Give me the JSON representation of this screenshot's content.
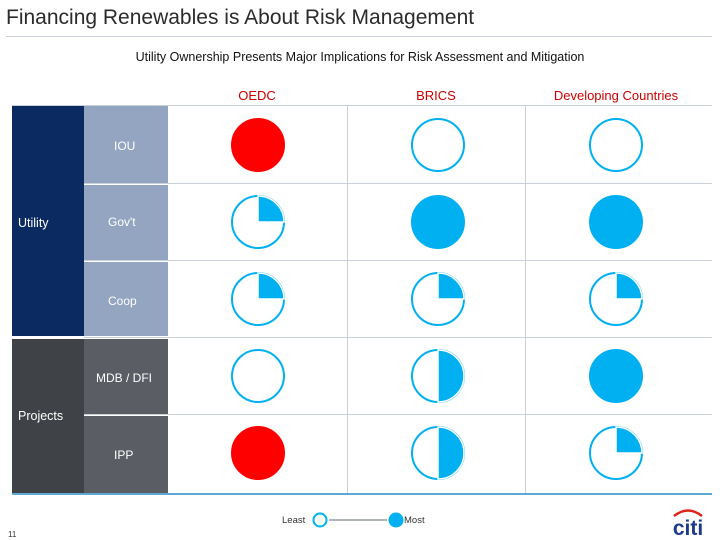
{
  "title": "Financing Renewables is About Risk Management",
  "subtitle": "Utility Ownership Presents Major Implications for Risk Assessment and Mitigation",
  "columns": [
    "OEDC",
    "BRICS",
    "Developing Countries"
  ],
  "groups": [
    {
      "label": "Utility",
      "rows": [
        "IOU",
        "Gov't",
        "Coop"
      ]
    },
    {
      "label": "Projects",
      "rows": [
        "MDB / DFI",
        "IPP"
      ]
    }
  ],
  "matrix": [
    {
      "row": "IOU",
      "cells": [
        {
          "fill": 1.0,
          "color": "red"
        },
        {
          "fill": 0.0,
          "color": "blue"
        },
        {
          "fill": 0.0,
          "color": "blue"
        }
      ]
    },
    {
      "row": "Gov't",
      "cells": [
        {
          "fill": 0.25,
          "color": "blue"
        },
        {
          "fill": 1.0,
          "color": "blue"
        },
        {
          "fill": 1.0,
          "color": "blue"
        }
      ]
    },
    {
      "row": "Coop",
      "cells": [
        {
          "fill": 0.25,
          "color": "blue"
        },
        {
          "fill": 0.25,
          "color": "blue"
        },
        {
          "fill": 0.25,
          "color": "blue"
        }
      ]
    },
    {
      "row": "MDB / DFI",
      "cells": [
        {
          "fill": 0.0,
          "color": "blue"
        },
        {
          "fill": 0.5,
          "color": "blue"
        },
        {
          "fill": 1.0,
          "color": "blue"
        }
      ]
    },
    {
      "row": "IPP",
      "cells": [
        {
          "fill": 1.0,
          "color": "red"
        },
        {
          "fill": 0.5,
          "color": "blue"
        },
        {
          "fill": 0.25,
          "color": "blue"
        }
      ]
    }
  ],
  "legend": {
    "least": "Least",
    "most": "Most"
  },
  "page_number": "11",
  "logo_text": "citi",
  "colors": {
    "blue": "#00b0f0",
    "red": "#ff0000",
    "header_red": "#cc0000",
    "utility_band": "#0b2a62",
    "gov_band": "#94a5c2",
    "projects_band": "#3f4246",
    "logo_blue": "#1e3a8a",
    "logo_red": "#e2231a"
  }
}
